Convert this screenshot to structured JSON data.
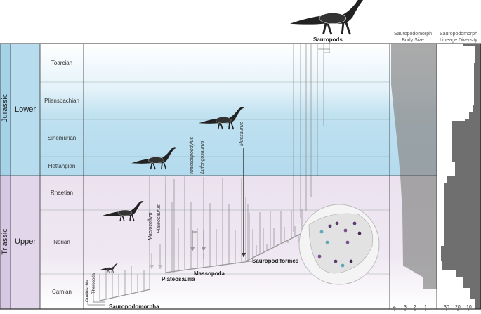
{
  "headers": {
    "body_size": "Sauropodomorph\nBody Size",
    "body_size_line1": "Sauropodomorph",
    "body_size_line2": "Body Size",
    "diversity_line1": "Sauropodomorph",
    "diversity_line2": "Lineage Diversity"
  },
  "periods": [
    {
      "period": "Jurassic",
      "epoch": "Lower"
    },
    {
      "period": "Triassic",
      "epoch": "Upper"
    }
  ],
  "stages": [
    "Toarcian",
    "Pliensbachian",
    "Sinemurian",
    "Hettangian",
    "Rhaetian",
    "Norian",
    "Carnian"
  ],
  "clades": {
    "sauropods": "Sauropods",
    "sauropodiformes": "Sauropodiformes",
    "massopoda": "Massopoda",
    "plateosauria": "Plateosauria",
    "sauropodomorpha": "Sauropodomorpha"
  },
  "outgroups": [
    "Ornithischia",
    "Theropoda"
  ],
  "taxa": [
    "Massospondylus",
    "Lufengosaurus",
    "Mussaurus",
    "Macrocollum",
    "Plateosaurus"
  ],
  "axes": {
    "body_size_ticks": [
      "4",
      "3",
      "2",
      "1"
    ],
    "diversity_ticks": [
      "30",
      "20",
      "10"
    ]
  },
  "colors": {
    "jurassic": "#b6dcec",
    "triassic": "#ece4f0",
    "jurassic_label": "#a7d3e8",
    "triassic_label": "#dccfe6",
    "panel_fill": "#8a8a8a"
  },
  "icons": [
    "sauropod-skeleton",
    "sauropodiform-skeleton",
    "massospondylid-skeleton",
    "plateosaur-skeleton",
    "early-sauropodomorph-skeleton",
    "paleogeographic-globe"
  ]
}
